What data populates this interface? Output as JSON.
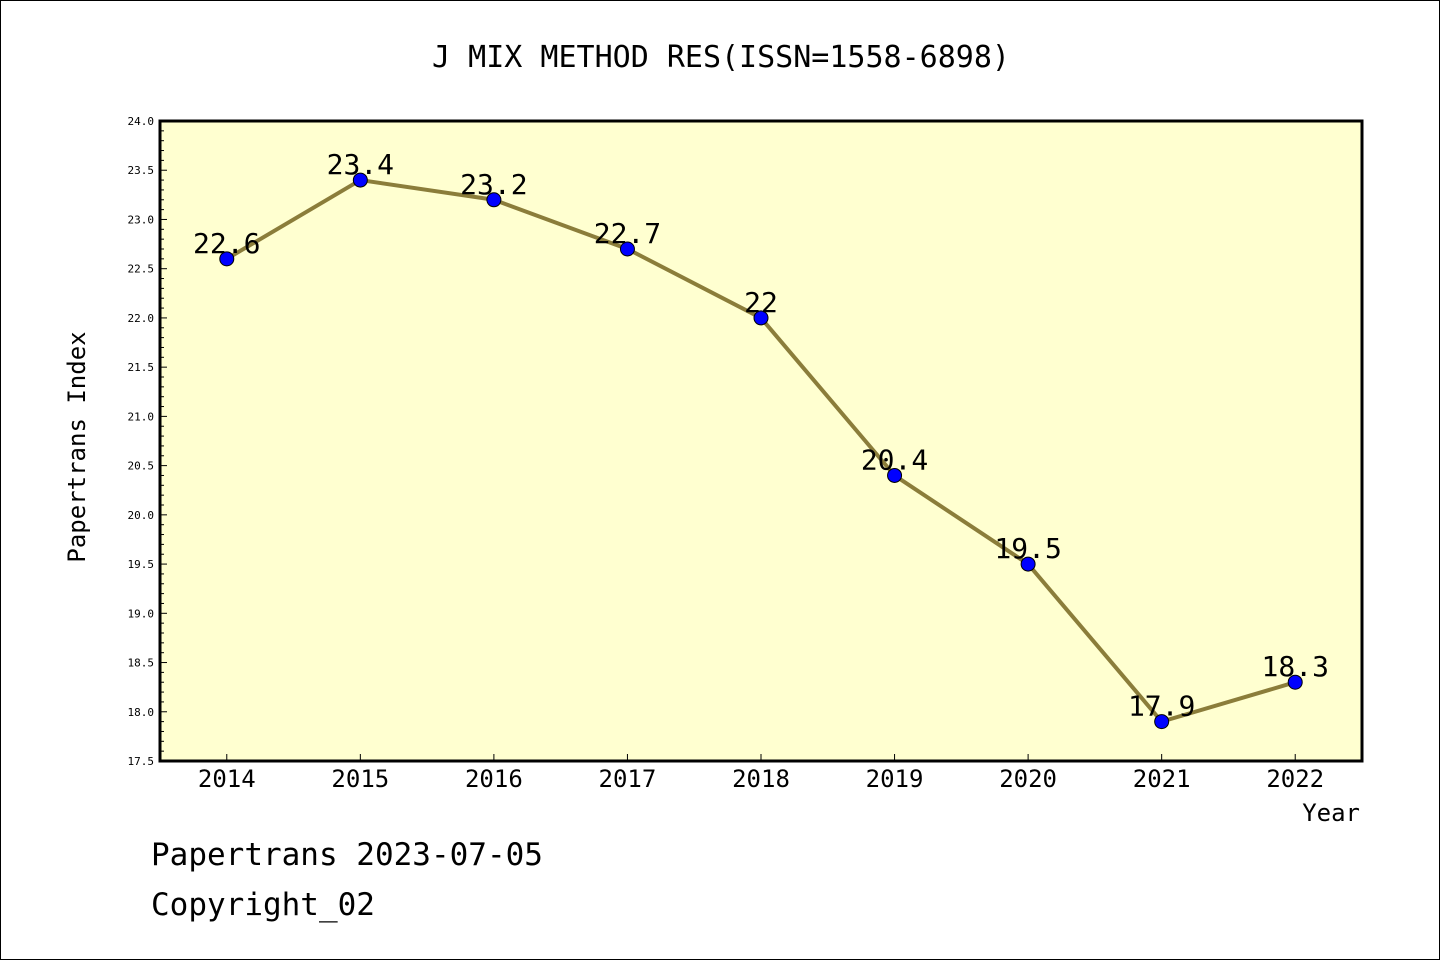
{
  "chart_data": {
    "type": "line",
    "title": "J MIX METHOD RES(ISSN=1558-6898)",
    "xlabel": "Year",
    "ylabel": "Papertrans Index",
    "categories": [
      "2014",
      "2015",
      "2016",
      "2017",
      "2018",
      "2019",
      "2020",
      "2021",
      "2022"
    ],
    "series": [
      {
        "values": [
          22.6,
          23.4,
          23.2,
          22.7,
          22.0,
          20.4,
          19.5,
          17.9,
          18.3
        ],
        "data_labels": [
          "22.6",
          "23.4",
          "23.2",
          "22.7",
          "22",
          "20.4",
          "19.5",
          "17.9",
          "18.3"
        ],
        "line_color": "#8B7D3A",
        "marker_color": "#0000FF"
      }
    ],
    "ylim": [
      17.5,
      24.0
    ],
    "yticks": [
      "17.5",
      "18.0",
      "18.5",
      "19.0",
      "19.5",
      "20.0",
      "20.5",
      "21.0",
      "21.5",
      "22.0",
      "22.5",
      "23.0",
      "23.5",
      "24.0"
    ],
    "plot_background": "#FFFFD0",
    "grid": false
  },
  "footer": {
    "line1": "Papertrans 2023-07-05",
    "line2": "Copyright_02"
  }
}
